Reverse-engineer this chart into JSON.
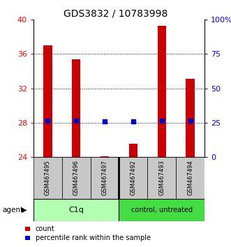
{
  "title": "GDS3832 / 10783998",
  "samples": [
    "GSM467495",
    "GSM467496",
    "GSM467497",
    "GSM467492",
    "GSM467493",
    "GSM467494"
  ],
  "count_values": [
    37.0,
    35.4,
    24.1,
    25.5,
    39.3,
    33.1
  ],
  "count_base": 24.0,
  "percentile_values": [
    26.5,
    26.3,
    25.8,
    26.0,
    26.4,
    26.2
  ],
  "ylim_left": [
    24,
    40
  ],
  "ylim_right": [
    0,
    100
  ],
  "yticks_left": [
    24,
    28,
    32,
    36,
    40
  ],
  "yticks_right": [
    0,
    25,
    50,
    75,
    100
  ],
  "yticklabels_right": [
    "0",
    "25",
    "50",
    "75",
    "100%"
  ],
  "bar_color": "#CC0000",
  "percentile_color": "#0000CC",
  "c1q_color": "#B2FFB2",
  "ctrl_color": "#44DD44",
  "gray_color": "#C8C8C8",
  "title_fontsize": 10,
  "tick_fontsize": 8,
  "sample_fontsize": 6,
  "group_fontsize": 8,
  "legend_fontsize": 7,
  "bar_width": 0.3,
  "grid_ticks": [
    28,
    32,
    36
  ]
}
